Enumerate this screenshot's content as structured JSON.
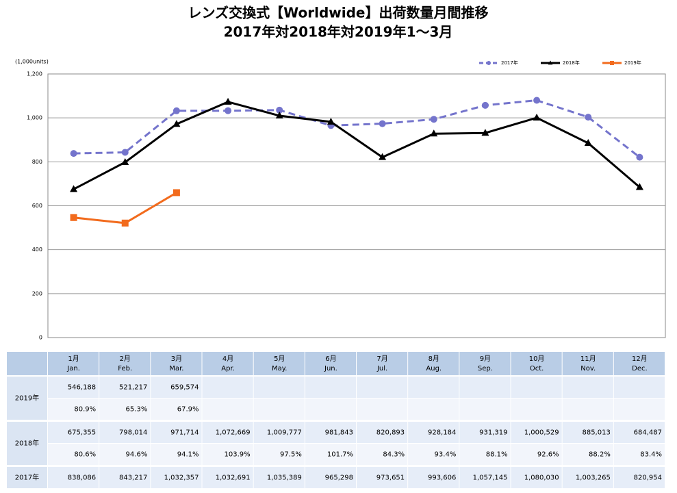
{
  "chart_data": {
    "type": "line",
    "title": "レンズ交換式【Worldwide】出荷数量月間推移",
    "subtitle": "2017年対2018年対2019年1～3月",
    "y_axis_label": "(1,000units)",
    "ylim": [
      0,
      1200
    ],
    "yticks": [
      0,
      200,
      400,
      600,
      800,
      {
        "value": 1000,
        "label": "1,000"
      },
      {
        "value": 1200,
        "label": "1,200"
      }
    ],
    "grid": true,
    "legend": "top-right",
    "series": [
      {
        "name": "2017年",
        "color": "#7474cc",
        "dash": true,
        "marker": "circle",
        "values": [
          838.086,
          843.217,
          1032.357,
          1032.691,
          1035.389,
          965.298,
          973.651,
          993.606,
          1057.145,
          1080.03,
          1003.265,
          820.954
        ]
      },
      {
        "name": "2018年",
        "color": "#000000",
        "dash": false,
        "marker": "triangle",
        "values": [
          675.355,
          798.014,
          971.714,
          1072.669,
          1009.777,
          981.843,
          820.893,
          928.184,
          931.319,
          1000.529,
          885.013,
          684.487
        ]
      },
      {
        "name": "2019年",
        "color": "#f26b1d",
        "dash": false,
        "marker": "square",
        "values": [
          546.188,
          521.217,
          659.574
        ]
      }
    ]
  },
  "table": {
    "header": [
      {
        "ja": "1月",
        "en": "Jan."
      },
      {
        "ja": "2月",
        "en": "Feb."
      },
      {
        "ja": "3月",
        "en": "Mar."
      },
      {
        "ja": "4月",
        "en": "Apr."
      },
      {
        "ja": "5月",
        "en": "May."
      },
      {
        "ja": "6月",
        "en": "Jun."
      },
      {
        "ja": "7月",
        "en": "Jul."
      },
      {
        "ja": "8月",
        "en": "Aug."
      },
      {
        "ja": "9月",
        "en": "Sep."
      },
      {
        "ja": "10月",
        "en": "Oct."
      },
      {
        "ja": "11月",
        "en": "Nov."
      },
      {
        "ja": "12月",
        "en": "Dec."
      }
    ],
    "rows": [
      {
        "label": "2019年",
        "values": [
          "546,188",
          "521,217",
          "659,574"
        ],
        "ratios": [
          "80.9%",
          "65.3%",
          "67.9%"
        ]
      },
      {
        "label": "2018年",
        "values": [
          "675,355",
          "798,014",
          "971,714",
          "1,072,669",
          "1,009,777",
          "981,843",
          "820,893",
          "928,184",
          "931,319",
          "1,000,529",
          "885,013",
          "684,487"
        ],
        "ratios": [
          "80.6%",
          "94.6%",
          "94.1%",
          "103.9%",
          "97.5%",
          "101.7%",
          "84.3%",
          "93.4%",
          "88.1%",
          "92.6%",
          "88.2%",
          "83.4%"
        ]
      },
      {
        "label": "2017年",
        "values": [
          "838,086",
          "843,217",
          "1,032,357",
          "1,032,691",
          "1,035,389",
          "965,298",
          "973,651",
          "993,606",
          "1,057,145",
          "1,080,030",
          "1,003,265",
          "820,954"
        ]
      }
    ]
  }
}
